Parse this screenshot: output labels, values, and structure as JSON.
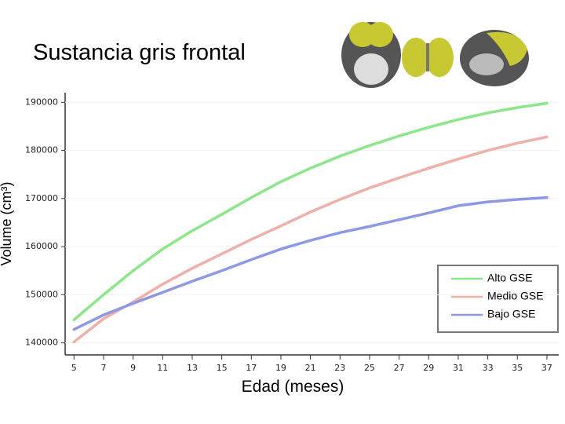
{
  "chart_data": {
    "type": "line",
    "title": "Sustancia gris frontal",
    "x_label": "Edad (meses)",
    "y_label": "Volume (cm³)",
    "x": [
      5,
      7,
      9,
      11,
      13,
      15,
      17,
      19,
      21,
      23,
      25,
      27,
      29,
      31,
      33,
      35,
      37
    ],
    "series": [
      {
        "name": "Alto GSE",
        "color": "#8ee68a",
        "values": [
          144800,
          150000,
          155000,
          159500,
          163300,
          166700,
          170200,
          173500,
          176300,
          178800,
          181000,
          183000,
          184800,
          186400,
          187800,
          188900,
          189800
        ]
      },
      {
        "name": "Medio GSE",
        "color": "#eeb0a8",
        "values": [
          140200,
          145000,
          148500,
          152200,
          155500,
          158500,
          161500,
          164300,
          167200,
          169800,
          172200,
          174300,
          176300,
          178200,
          180000,
          181500,
          182800
        ]
      },
      {
        "name": "Bajo GSE",
        "color": "#8d98e6",
        "values": [
          142800,
          145800,
          148200,
          150500,
          152800,
          155000,
          157300,
          159500,
          161300,
          162900,
          164200,
          165600,
          167000,
          168500,
          169300,
          169800,
          170200
        ]
      }
    ],
    "xlim": [
      4.4,
      37.8
    ],
    "xticks": [
      5,
      7,
      9,
      11,
      13,
      15,
      17,
      19,
      21,
      23,
      25,
      27,
      29,
      31,
      33,
      35,
      37
    ],
    "ylim": [
      137500,
      192000
    ],
    "yticks": [
      140000,
      150000,
      160000,
      170000,
      180000,
      190000
    ],
    "grid": true,
    "legend": "lower right"
  }
}
